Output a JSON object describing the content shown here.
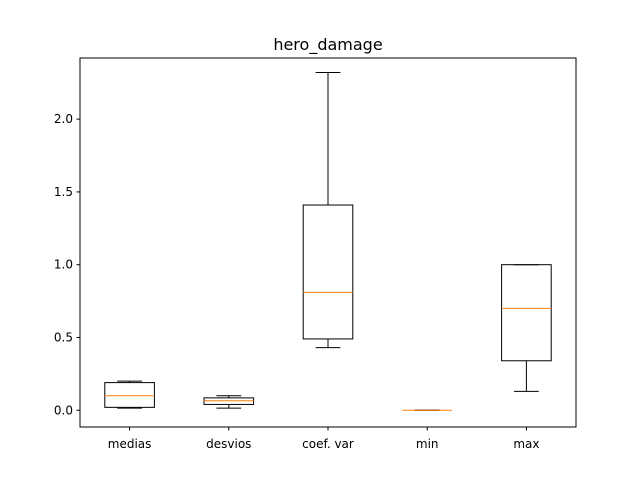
{
  "chart_data": {
    "type": "box",
    "title": "hero_damage",
    "xlabel": "",
    "ylabel": "",
    "categories": [
      "medias",
      "desvios",
      "coef. var",
      "min",
      "max"
    ],
    "ylim": [
      -0.115,
      2.42
    ],
    "yticks": [
      0.0,
      0.5,
      1.0,
      1.5,
      2.0
    ],
    "ytick_labels": [
      "0.0",
      "0.5",
      "1.0",
      "1.5",
      "2.0"
    ],
    "grid": false,
    "box_color": "#000000",
    "median_color": "#ff7f0e",
    "boxes": [
      {
        "name": "medias",
        "whislo": 0.015,
        "q1": 0.02,
        "med": 0.1,
        "q3": 0.19,
        "whishi": 0.2
      },
      {
        "name": "desvios",
        "whislo": 0.015,
        "q1": 0.04,
        "med": 0.065,
        "q3": 0.085,
        "whishi": 0.1
      },
      {
        "name": "coef. var",
        "whislo": 0.43,
        "q1": 0.49,
        "med": 0.81,
        "q3": 1.41,
        "whishi": 2.32
      },
      {
        "name": "min",
        "whislo": 0.0,
        "q1": 0.0,
        "med": 0.0,
        "q3": 0.0,
        "whishi": 0.0
      },
      {
        "name": "max",
        "whislo": 0.13,
        "q1": 0.34,
        "med": 0.7,
        "q3": 1.0,
        "whishi": 1.0
      }
    ]
  }
}
